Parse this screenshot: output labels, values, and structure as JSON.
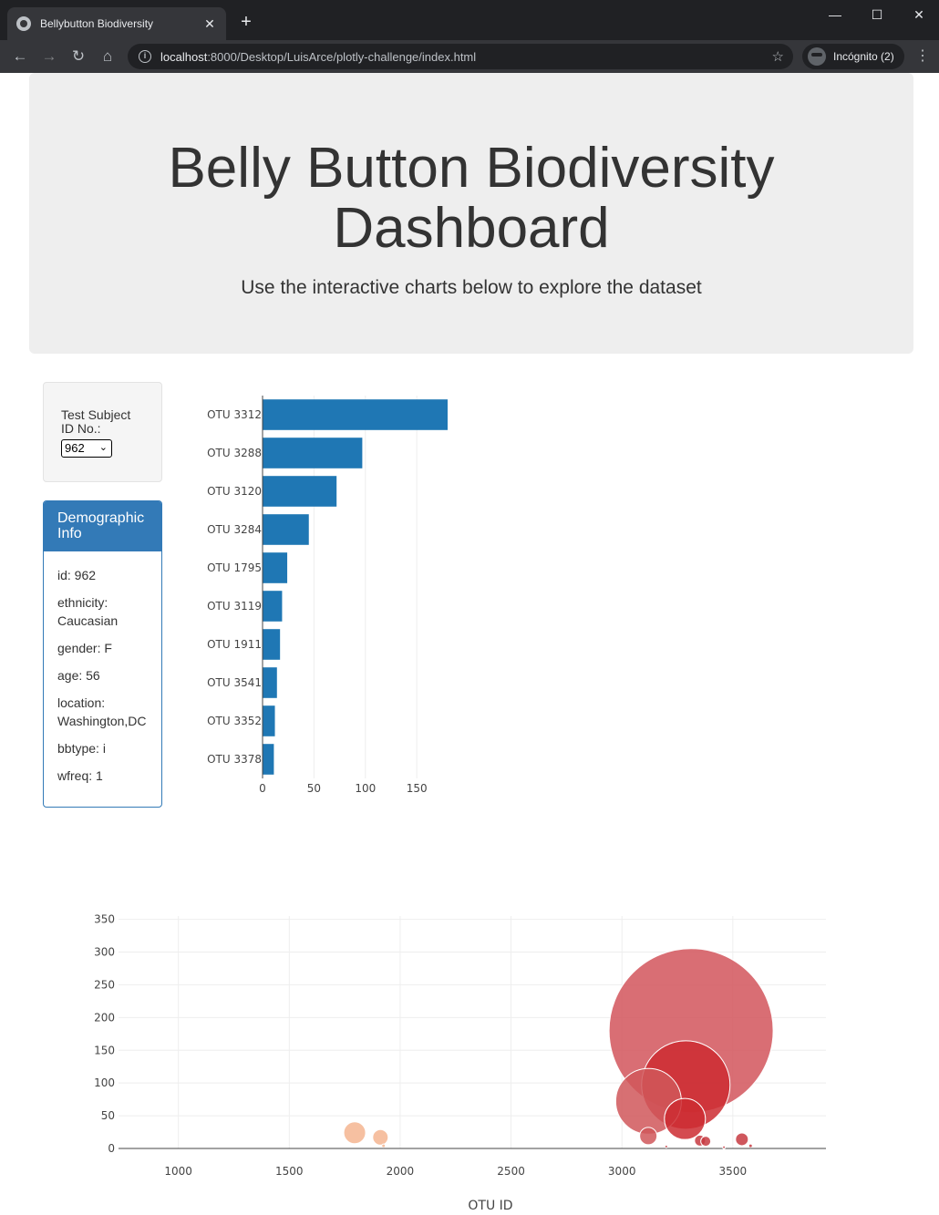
{
  "browser": {
    "tab_title": "Bellybutton Biodiversity",
    "tab_close": "✕",
    "new_tab": "+",
    "url_host": "localhost",
    "url_rest": ":8000/Desktop/LuisArce/plotly-challenge/index.html",
    "incognito_label": "Incógnito (2)",
    "back_icon": "←",
    "forward_icon": "→",
    "reload_icon": "↻",
    "home_icon": "⌂",
    "star_icon": "☆",
    "info_icon": "i",
    "menu_icon": "⋮",
    "minimize_icon": "—",
    "maximize_icon": "☐",
    "close_icon": "✕"
  },
  "header": {
    "title_line1": "Belly Button Biodiversity",
    "title_line2": "Dashboard",
    "subtitle": "Use the interactive charts below to explore the dataset"
  },
  "selector": {
    "label": "Test Subject ID No.:",
    "selected": "962",
    "chevron": "⌄"
  },
  "demographic": {
    "title": "Demographic Info",
    "rows": [
      "id: 962",
      "ethnicity: Caucasian",
      "gender: F",
      "age: 56",
      "location: Washington,DC",
      "bbtype: i",
      "wfreq: 1"
    ]
  },
  "chart_data": [
    {
      "type": "bar",
      "orientation": "horizontal",
      "categories": [
        "OTU 3312",
        "OTU 3288",
        "OTU 3120",
        "OTU 3284",
        "OTU 1795",
        "OTU 3119",
        "OTU 1911",
        "OTU 3541",
        "OTU 3352",
        "OTU 3378"
      ],
      "values": [
        180,
        97,
        72,
        45,
        24,
        19,
        17,
        14,
        12,
        11
      ],
      "xlim": [
        0,
        180
      ],
      "xticks": [
        0,
        50,
        100,
        150
      ],
      "grid": true,
      "color": "#1f77b4"
    },
    {
      "type": "scatter",
      "subtype": "bubble",
      "xlabel": "OTU ID",
      "xticks": [
        1000,
        1500,
        2000,
        2500,
        3000,
        3500
      ],
      "yticks": [
        0,
        50,
        100,
        150,
        200,
        250,
        300,
        350
      ],
      "xlim": [
        730,
        3920
      ],
      "ylim": [
        0,
        355
      ],
      "grid": true,
      "points": [
        {
          "x": 3312,
          "y": 180,
          "color": "#d2555c"
        },
        {
          "x": 3288,
          "y": 97,
          "color": "#cc2b31"
        },
        {
          "x": 3120,
          "y": 72,
          "color": "#d0575b"
        },
        {
          "x": 3284,
          "y": 45,
          "color": "#cc2b31"
        },
        {
          "x": 1795,
          "y": 24,
          "color": "#f4b590"
        },
        {
          "x": 3119,
          "y": 19,
          "color": "#d0575b"
        },
        {
          "x": 1911,
          "y": 17,
          "color": "#f4b590"
        },
        {
          "x": 3541,
          "y": 14,
          "color": "#c73941"
        },
        {
          "x": 3352,
          "y": 12,
          "color": "#c73941"
        },
        {
          "x": 3378,
          "y": 11,
          "color": "#c73941"
        },
        {
          "x": 1925,
          "y": 4,
          "color": "#f4b590"
        },
        {
          "x": 3200,
          "y": 3,
          "color": "#c73941"
        },
        {
          "x": 3580,
          "y": 4,
          "color": "#c73941"
        },
        {
          "x": 3460,
          "y": 2,
          "color": "#c73941"
        }
      ]
    }
  ]
}
